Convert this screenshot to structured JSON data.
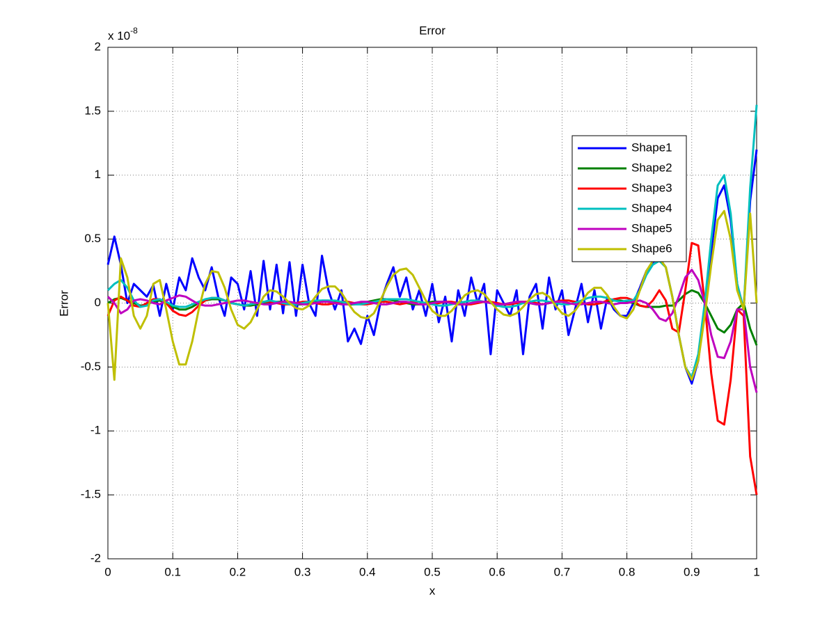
{
  "chart_data": {
    "type": "line",
    "title": "Error",
    "xlabel": "x",
    "ylabel": "Error",
    "y_multiplier": "x 10",
    "y_exponent": "-8",
    "x": [
      0,
      0.01,
      0.02,
      0.03,
      0.04,
      0.05,
      0.06,
      0.07,
      0.08,
      0.09,
      0.1,
      0.11,
      0.12,
      0.13,
      0.14,
      0.15,
      0.16,
      0.17,
      0.18,
      0.19,
      0.2,
      0.21,
      0.22,
      0.23,
      0.24,
      0.25,
      0.26,
      0.27,
      0.28,
      0.29,
      0.3,
      0.31,
      0.32,
      0.33,
      0.34,
      0.35,
      0.36,
      0.37,
      0.38,
      0.39,
      0.4,
      0.41,
      0.42,
      0.43,
      0.44,
      0.45,
      0.46,
      0.47,
      0.48,
      0.49,
      0.5,
      0.51,
      0.52,
      0.53,
      0.54,
      0.55,
      0.56,
      0.57,
      0.58,
      0.59,
      0.6,
      0.61,
      0.62,
      0.63,
      0.64,
      0.65,
      0.66,
      0.67,
      0.68,
      0.69,
      0.7,
      0.71,
      0.72,
      0.73,
      0.74,
      0.75,
      0.76,
      0.77,
      0.78,
      0.79,
      0.8,
      0.81,
      0.82,
      0.83,
      0.84,
      0.85,
      0.86,
      0.87,
      0.88,
      0.89,
      0.9,
      0.91,
      0.92,
      0.93,
      0.94,
      0.95,
      0.96,
      0.97,
      0.98,
      0.99,
      1
    ],
    "series": [
      {
        "name": "Shape1",
        "color": "#0000ff",
        "values": [
          0.3,
          0.52,
          0.3,
          0,
          0.15,
          0.1,
          0.05,
          0.14,
          -0.1,
          0.15,
          -0.05,
          0.2,
          0.1,
          0.35,
          0.2,
          0.1,
          0.28,
          0.05,
          -0.1,
          0.2,
          0.15,
          -0.05,
          0.25,
          -0.1,
          0.33,
          -0.05,
          0.3,
          -0.08,
          0.32,
          -0.1,
          0.3,
          0,
          -0.1,
          0.37,
          0.1,
          -0.05,
          0.1,
          -0.3,
          -0.2,
          -0.32,
          -0.1,
          -0.25,
          0,
          0.15,
          0.28,
          0.05,
          0.2,
          -0.05,
          0.1,
          -0.1,
          0.15,
          -0.15,
          0.05,
          -0.3,
          0.1,
          -0.1,
          0.2,
          0,
          0.15,
          -0.4,
          0.1,
          0,
          -0.1,
          0.1,
          -0.4,
          0.05,
          0.15,
          -0.2,
          0.2,
          -0.05,
          0.1,
          -0.25,
          -0.05,
          0.15,
          -0.15,
          0.1,
          -0.2,
          0.05,
          -0.05,
          -0.1,
          -0.1,
          0,
          0.12,
          0.25,
          0.32,
          0.35,
          0.28,
          0.05,
          -0.25,
          -0.5,
          -0.63,
          -0.45,
          -0.05,
          0.4,
          0.82,
          0.92,
          0.65,
          0.15,
          -0.05,
          0.8,
          1.2
        ]
      },
      {
        "name": "Shape2",
        "color": "#008000",
        "values": [
          0,
          0.03,
          0.04,
          0.02,
          0,
          -0.02,
          -0.01,
          0.01,
          0.02,
          0,
          -0.03,
          -0.05,
          -0.05,
          -0.03,
          0,
          0.02,
          0.03,
          0.03,
          0.02,
          0,
          -0.01,
          -0.02,
          -0.02,
          -0.01,
          0,
          0.01,
          0.01,
          0.01,
          0,
          -0.01,
          -0.01,
          0,
          0.01,
          0.02,
          0.02,
          0.01,
          0,
          -0.01,
          -0.01,
          0,
          0.01,
          0.02,
          0.03,
          0.03,
          0.02,
          0.01,
          0,
          -0.01,
          -0.01,
          0,
          0.01,
          0.01,
          0.01,
          0,
          -0.01,
          -0.01,
          0,
          0.01,
          0.01,
          0,
          -0.01,
          -0.01,
          0,
          0.01,
          0.01,
          0,
          -0.01,
          -0.01,
          0,
          0.01,
          0.02,
          0.02,
          0.01,
          0,
          -0.01,
          -0.01,
          0,
          0.01,
          0.02,
          0.02,
          0.01,
          0,
          -0.02,
          -0.03,
          -0.03,
          -0.03,
          -0.02,
          -0.02,
          0.02,
          0.07,
          0.1,
          0.08,
          0,
          -0.1,
          -0.2,
          -0.23,
          -0.17,
          -0.05,
          0,
          -0.2,
          -0.33
        ]
      },
      {
        "name": "Shape3",
        "color": "#ff0000",
        "values": [
          -0.1,
          0.02,
          0.05,
          0.02,
          -0.02,
          -0.03,
          0,
          0.03,
          0.03,
          0,
          -0.06,
          -0.09,
          -0.1,
          -0.07,
          -0.02,
          0.02,
          0.04,
          0.04,
          0.02,
          0,
          -0.01,
          -0.02,
          -0.01,
          0,
          0.01,
          0.01,
          0,
          -0.01,
          -0.01,
          0,
          0.01,
          0.01,
          0,
          -0.01,
          -0.01,
          0,
          0.01,
          0.01,
          0,
          -0.01,
          -0.01,
          0,
          0.01,
          0.01,
          0,
          -0.01,
          0,
          0.01,
          0.01,
          0,
          -0.01,
          0,
          0.01,
          0.01,
          0,
          -0.01,
          -0.01,
          0,
          0.01,
          0.01,
          0,
          -0.01,
          -0.01,
          0,
          0.01,
          0.01,
          0,
          -0.01,
          0,
          0.01,
          0.02,
          0.02,
          0.01,
          0,
          -0.01,
          -0.01,
          0,
          0.02,
          0.03,
          0.04,
          0.04,
          0.02,
          -0.02,
          -0.03,
          0.02,
          0.1,
          0.02,
          -0.2,
          -0.23,
          0.1,
          0.47,
          0.45,
          0,
          -0.55,
          -0.92,
          -0.95,
          -0.6,
          -0.05,
          -0.1,
          -1.2,
          -1.5
        ]
      },
      {
        "name": "Shape4",
        "color": "#00bfbf",
        "values": [
          0.1,
          0.15,
          0.18,
          0.12,
          0.02,
          -0.03,
          -0.02,
          0.02,
          0.03,
          0.01,
          -0.02,
          -0.03,
          -0.03,
          -0.01,
          0.01,
          0.03,
          0.04,
          0.04,
          0.02,
          0,
          -0.01,
          -0.02,
          -0.01,
          0,
          0.01,
          0.02,
          0.01,
          0,
          -0.01,
          -0.01,
          0,
          0.01,
          0.02,
          0.02,
          0.02,
          0.02,
          0.01,
          0,
          -0.01,
          -0.01,
          0,
          0.01,
          0.02,
          0.03,
          0.03,
          0.03,
          0.03,
          0.02,
          0.01,
          0,
          -0.01,
          -0.02,
          -0.02,
          -0.01,
          0,
          0.01,
          0.02,
          0.02,
          0.01,
          0,
          -0.02,
          -0.03,
          -0.03,
          -0.02,
          0,
          0.01,
          0.02,
          0.02,
          0.01,
          0,
          -0.01,
          -0.01,
          0,
          0.02,
          0.04,
          0.05,
          0.05,
          0.04,
          0.02,
          0.01,
          0.02,
          0.02,
          0.1,
          0.22,
          0.3,
          0.33,
          0.28,
          0.05,
          -0.25,
          -0.5,
          -0.58,
          -0.4,
          0,
          0.5,
          0.92,
          1,
          0.7,
          0.15,
          -0.05,
          0.9,
          1.55
        ]
      },
      {
        "name": "Shape5",
        "color": "#bf00bf",
        "values": [
          0.05,
          0,
          -0.08,
          -0.05,
          0.02,
          0.03,
          0.02,
          0,
          -0.01,
          0.02,
          0.04,
          0.06,
          0.05,
          0.02,
          -0.01,
          -0.02,
          -0.02,
          -0.01,
          0,
          0.01,
          0.02,
          0.02,
          0.01,
          0,
          -0.01,
          -0.01,
          0,
          0.01,
          0.01,
          0,
          -0.01,
          -0.01,
          0,
          0.01,
          0.01,
          0,
          -0.01,
          -0.01,
          0,
          0.01,
          0.01,
          0,
          -0.01,
          -0.01,
          0,
          0.01,
          0.01,
          0,
          -0.01,
          -0.01,
          0,
          0.01,
          0.01,
          0,
          -0.01,
          -0.01,
          0,
          0.01,
          0.01,
          0,
          -0.01,
          -0.01,
          0,
          0.01,
          0.01,
          0,
          -0.01,
          -0.01,
          0,
          0.01,
          0.01,
          0,
          -0.01,
          -0.01,
          0,
          0.01,
          0.01,
          0,
          -0.01,
          0,
          0,
          0.01,
          0.02,
          0,
          -0.05,
          -0.12,
          -0.14,
          -0.08,
          0.05,
          0.2,
          0.26,
          0.18,
          0,
          -0.25,
          -0.42,
          -0.43,
          -0.3,
          -0.05,
          -0.05,
          -0.5,
          -0.7
        ]
      },
      {
        "name": "Shape6",
        "color": "#bfbf00",
        "values": [
          0,
          -0.6,
          0.35,
          0.2,
          -0.1,
          -0.2,
          -0.1,
          0.15,
          0.18,
          -0.05,
          -0.3,
          -0.48,
          -0.48,
          -0.3,
          -0.05,
          0.15,
          0.25,
          0.24,
          0.12,
          -0.05,
          -0.17,
          -0.2,
          -0.15,
          -0.05,
          0.05,
          0.1,
          0.09,
          0.05,
          0,
          -0.04,
          -0.05,
          -0.02,
          0.05,
          0.11,
          0.13,
          0.13,
          0.08,
          0,
          -0.07,
          -0.11,
          -0.12,
          -0.08,
          0.02,
          0.13,
          0.22,
          0.26,
          0.27,
          0.22,
          0.12,
          0.02,
          -0.06,
          -0.1,
          -0.1,
          -0.06,
          0,
          0.06,
          0.09,
          0.1,
          0.07,
          0.01,
          -0.05,
          -0.09,
          -0.1,
          -0.08,
          -0.03,
          0.03,
          0.07,
          0.08,
          0.05,
          -0.02,
          -0.08,
          -0.1,
          -0.06,
          0.01,
          0.08,
          0.12,
          0.12,
          0.06,
          -0.03,
          -0.1,
          -0.12,
          -0.05,
          0.1,
          0.25,
          0.33,
          0.35,
          0.28,
          0.05,
          -0.25,
          -0.5,
          -0.6,
          -0.45,
          -0.1,
          0.3,
          0.65,
          0.72,
          0.5,
          0.1,
          -0.05,
          0.7,
          0
        ]
      }
    ],
    "xlim": [
      0,
      1
    ],
    "xticks": [
      0,
      0.1,
      0.2,
      0.3,
      0.4,
      0.5,
      0.6,
      0.7,
      0.8,
      0.9,
      1
    ],
    "ylim": [
      -2,
      2
    ],
    "yticks": [
      -2,
      -1.5,
      -1,
      -0.5,
      0,
      0.5,
      1,
      1.5,
      2
    ],
    "grid": true,
    "legend": "upper right"
  }
}
